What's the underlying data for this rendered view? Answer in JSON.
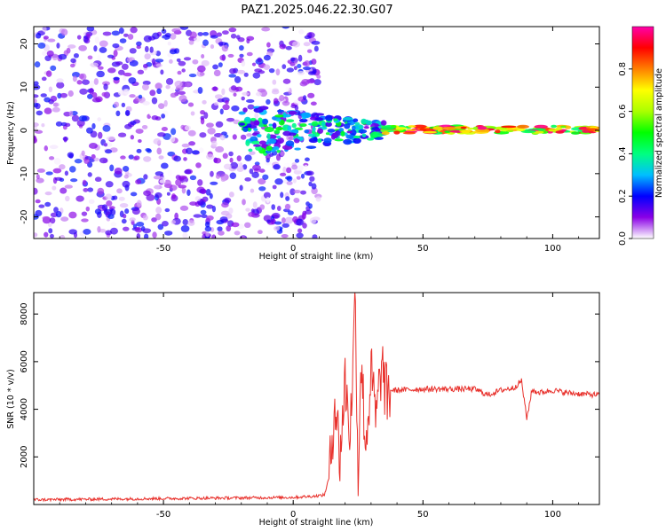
{
  "title": "PAZ1.2025.046.22.30.G07",
  "colors": {
    "snr_line": "#e8302b",
    "axis": "#000000"
  },
  "chart_data": [
    {
      "type": "heatmap",
      "xlabel": "Height of straight line (km)",
      "ylabel": "Frequency (Hz)",
      "xlim": [
        -100,
        118
      ],
      "ylim": [
        -25,
        24
      ],
      "xticks": [
        -50,
        0,
        50,
        100
      ],
      "yticks": [
        -20,
        -10,
        0,
        10,
        20
      ],
      "colorbar": {
        "label": "Normalized spectral amplitude",
        "range": [
          0,
          1
        ],
        "ticks": [
          0.0,
          0.2,
          0.4,
          0.6,
          0.8
        ],
        "colormap": "rainbow"
      },
      "description_regions": [
        {
          "x_range": [
            -100,
            10
          ],
          "freq_range": [
            -25,
            24
          ],
          "amplitude": [
            0.0,
            0.22
          ],
          "pattern": "scattered noise"
        },
        {
          "x_range": [
            -20,
            35
          ],
          "freq_range": [
            -6,
            6
          ],
          "amplitude": [
            0.1,
            0.5
          ],
          "pattern": "converging signal"
        },
        {
          "x_range": [
            35,
            118
          ],
          "freq_range": [
            -1,
            1
          ],
          "amplitude": [
            0.4,
            1.0
          ],
          "pattern": "narrow band near 0 Hz"
        }
      ]
    },
    {
      "type": "line",
      "xlabel": "Height of straight line (km)",
      "ylabel": "SNR (10 * v/v)",
      "xlim": [
        -100,
        118
      ],
      "ylim": [
        0,
        8900
      ],
      "xticks": [
        -50,
        0,
        50,
        100
      ],
      "yticks": [
        2000,
        4000,
        6000,
        8000
      ],
      "series": [
        {
          "color": "#e8302b",
          "x": [
            -100,
            -80,
            -60,
            -40,
            -20,
            0,
            8,
            12,
            14,
            16,
            18,
            20,
            22,
            24,
            25,
            26,
            28,
            30,
            32,
            34,
            36,
            38,
            40,
            50,
            60,
            70,
            75,
            80,
            85,
            88,
            90,
            92,
            95,
            100,
            105,
            110,
            118
          ],
          "y": [
            200,
            220,
            240,
            260,
            280,
            300,
            350,
            400,
            1200,
            4500,
            2000,
            5200,
            3000,
            8900,
            700,
            6200,
            2500,
            5500,
            3500,
            5900,
            4500,
            4800,
            4800,
            4850,
            4850,
            4850,
            4600,
            4800,
            4900,
            5200,
            3600,
            4800,
            4700,
            4800,
            4700,
            4650,
            4600
          ]
        }
      ]
    }
  ]
}
